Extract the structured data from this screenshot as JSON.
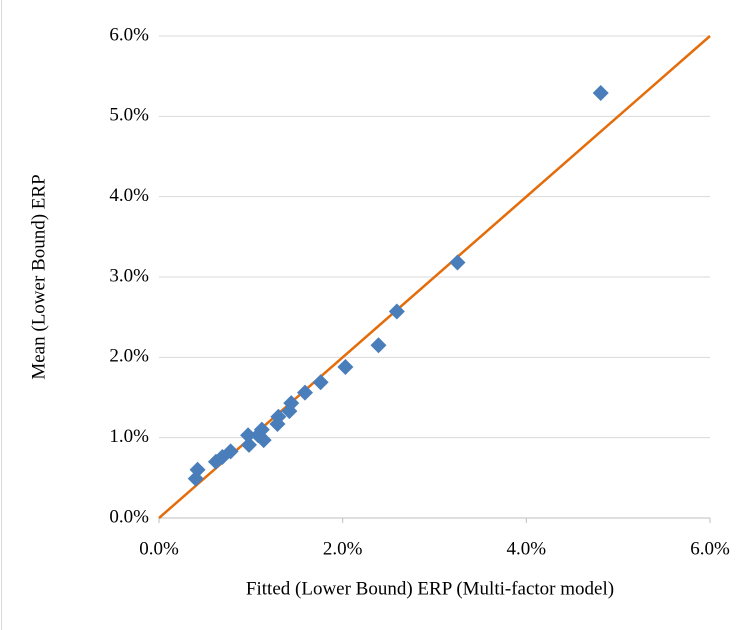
{
  "chart_data": {
    "type": "scatter",
    "xlabel": "Fitted (Lower Bound) ERP (Multi-factor model)",
    "ylabel": "Mean (Lower Bound) ERP",
    "x": [
      4.81,
      3.25,
      2.59,
      2.39,
      2.03,
      1.76,
      1.59,
      1.44,
      1.42,
      1.3,
      1.29,
      1.12,
      1.14,
      1.08,
      0.97,
      0.98,
      0.78,
      0.69,
      0.62,
      0.42,
      0.4
    ],
    "y": [
      5.29,
      3.18,
      2.57,
      2.15,
      1.88,
      1.69,
      1.56,
      1.43,
      1.33,
      1.26,
      1.17,
      1.1,
      0.97,
      1.03,
      1.03,
      0.91,
      0.83,
      0.76,
      0.7,
      0.6,
      0.49
    ],
    "color": "#4a7ebb",
    "line": {
      "x": [
        0,
        6
      ],
      "y": [
        0,
        6
      ],
      "color": "#e46c0a"
    },
    "xlim": [
      0,
      6
    ],
    "ylim": [
      0,
      6
    ],
    "xticks": [
      {
        "value": 0,
        "label": "0.0%"
      },
      {
        "value": 2,
        "label": "2.0%"
      },
      {
        "value": 4,
        "label": "4.0%"
      },
      {
        "value": 6,
        "label": "6.0%"
      }
    ],
    "yticks": [
      {
        "value": 0,
        "label": "0.0%"
      },
      {
        "value": 1,
        "label": "1.0%"
      },
      {
        "value": 2,
        "label": "2.0%"
      },
      {
        "value": 3,
        "label": "3.0%"
      },
      {
        "value": 4,
        "label": "4.0%"
      },
      {
        "value": 5,
        "label": "5.0%"
      },
      {
        "value": 6,
        "label": "6.0%"
      }
    ],
    "grid": true
  }
}
